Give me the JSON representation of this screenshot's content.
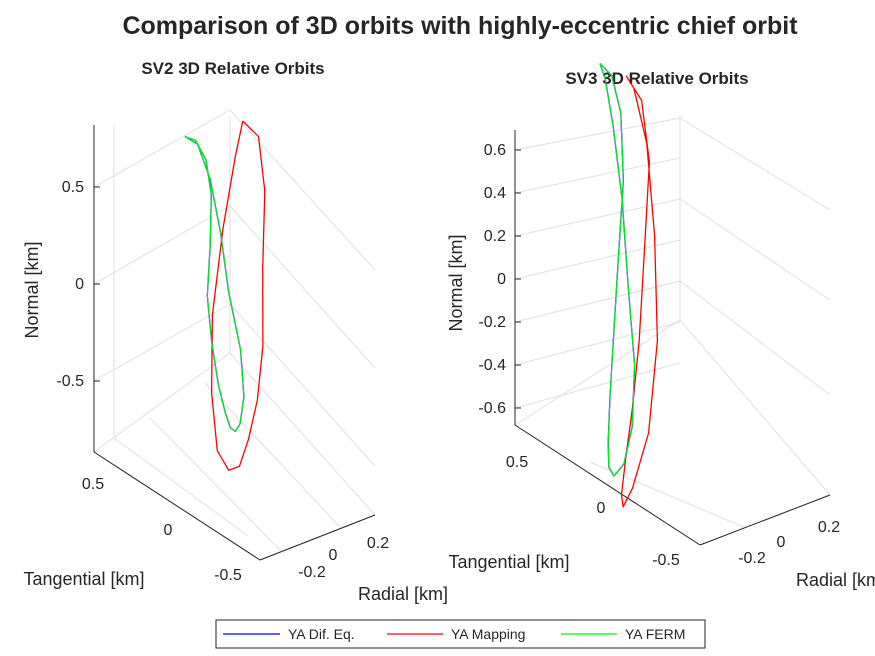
{
  "figure": {
    "title": "Comparison of 3D orbits with highly-eccentric chief orbit"
  },
  "chart_data": [
    {
      "type": "line",
      "projection": "3d",
      "title": "SV2 3D Relative Orbits",
      "xlabel": "Radial [km]",
      "ylabel": "Tangential [km]",
      "zlabel": "Normal [km]",
      "x_ticks": [
        "-0.2",
        "0",
        "0.2"
      ],
      "y_ticks": [
        "-0.5",
        "0",
        "0.5"
      ],
      "z_ticks": [
        "-0.5",
        "0",
        "0.5"
      ],
      "grid": true,
      "series": [
        {
          "name": "YA Dif. Eq.",
          "color": "#0000ff",
          "points": [
            [
              0.76,
              0.0
            ],
            [
              0.74,
              0.1
            ],
            [
              0.64,
              0.2
            ],
            [
              0.46,
              0.25
            ],
            [
              0.2,
              0.24
            ],
            [
              -0.06,
              0.19
            ],
            [
              -0.3,
              0.14
            ],
            [
              -0.52,
              0.12
            ],
            [
              -0.66,
              0.13
            ],
            [
              -0.74,
              0.15
            ],
            [
              -0.76,
              0.19
            ],
            [
              -0.72,
              0.25
            ],
            [
              -0.58,
              0.34
            ],
            [
              -0.34,
              0.4
            ],
            [
              -0.04,
              0.4
            ],
            [
              0.26,
              0.34
            ],
            [
              0.54,
              0.24
            ],
            [
              0.72,
              0.12
            ],
            [
              0.76,
              0.0
            ]
          ]
        },
        {
          "name": "YA Mapping",
          "color": "#ff0000",
          "points": [
            [
              0.84,
              0.55
            ],
            [
              0.76,
              0.7
            ],
            [
              0.48,
              0.76
            ],
            [
              0.08,
              0.74
            ],
            [
              -0.32,
              0.62
            ],
            [
              -0.6,
              0.46
            ],
            [
              -0.8,
              0.3
            ],
            [
              -0.94,
              0.16
            ],
            [
              -0.96,
              0.05
            ],
            [
              -0.86,
              -0.02
            ],
            [
              -0.56,
              0.04
            ],
            [
              -0.16,
              0.2
            ],
            [
              0.28,
              0.36
            ],
            [
              0.66,
              0.48
            ],
            [
              0.84,
              0.55
            ]
          ]
        },
        {
          "name": "YA FERM",
          "color": "#00ff00",
          "points": [
            [
              0.76,
              0.0
            ],
            [
              0.74,
              0.1
            ],
            [
              0.64,
              0.2
            ],
            [
              0.46,
              0.25
            ],
            [
              0.2,
              0.24
            ],
            [
              -0.06,
              0.19
            ],
            [
              -0.3,
              0.14
            ],
            [
              -0.52,
              0.12
            ],
            [
              -0.66,
              0.13
            ],
            [
              -0.74,
              0.15
            ],
            [
              -0.76,
              0.19
            ],
            [
              -0.72,
              0.25
            ],
            [
              -0.58,
              0.34
            ],
            [
              -0.34,
              0.4
            ],
            [
              -0.04,
              0.4
            ],
            [
              0.26,
              0.34
            ],
            [
              0.54,
              0.24
            ],
            [
              0.72,
              0.12
            ],
            [
              0.76,
              0.0
            ]
          ]
        }
      ]
    },
    {
      "type": "line",
      "projection": "3d",
      "title": "SV3 3D Relative Orbits",
      "xlabel": "Radial [km]",
      "ylabel": "Tangential [km]",
      "zlabel": "Normal [km]",
      "x_ticks": [
        "-0.2",
        "0",
        "0.2"
      ],
      "y_ticks": [
        "-0.5",
        "0",
        "0.5"
      ],
      "z_ticks": [
        "-0.6",
        "-0.4",
        "-0.2",
        "0",
        "0.2",
        "0.4",
        "0.6"
      ],
      "grid": true,
      "series": [
        {
          "name": "YA Dif. Eq.",
          "color": "#0000ff",
          "points": [
            [
              0.7,
              0.0
            ],
            [
              0.66,
              0.09
            ],
            [
              0.54,
              0.16
            ],
            [
              0.32,
              0.18
            ],
            [
              0.06,
              0.14
            ],
            [
              -0.18,
              0.05
            ],
            [
              -0.38,
              -0.04
            ],
            [
              -0.53,
              -0.1
            ],
            [
              -0.61,
              -0.12
            ],
            [
              -0.64,
              -0.09
            ],
            [
              -0.6,
              0.0
            ],
            [
              -0.48,
              0.1
            ],
            [
              -0.28,
              0.18
            ],
            [
              -0.02,
              0.21
            ],
            [
              0.26,
              0.17
            ],
            [
              0.5,
              0.1
            ],
            [
              0.65,
              0.04
            ],
            [
              0.7,
              0.0
            ]
          ]
        },
        {
          "name": "YA Mapping",
          "color": "#ff0000",
          "points": [
            [
              0.66,
              0.2
            ],
            [
              0.58,
              0.32
            ],
            [
              0.38,
              0.38
            ],
            [
              0.08,
              0.34
            ],
            [
              -0.2,
              0.24
            ],
            [
              -0.42,
              0.12
            ],
            [
              -0.58,
              0.02
            ],
            [
              -0.7,
              -0.05
            ],
            [
              -0.74,
              -0.05
            ],
            [
              -0.68,
              0.04
            ],
            [
              -0.5,
              0.22
            ],
            [
              -0.2,
              0.38
            ],
            [
              0.14,
              0.42
            ],
            [
              0.44,
              0.36
            ],
            [
              0.62,
              0.26
            ],
            [
              0.66,
              0.2
            ]
          ]
        },
        {
          "name": "YA FERM",
          "color": "#00ff00",
          "points": [
            [
              0.7,
              0.0
            ],
            [
              0.66,
              0.09
            ],
            [
              0.54,
              0.16
            ],
            [
              0.32,
              0.18
            ],
            [
              0.06,
              0.14
            ],
            [
              -0.18,
              0.05
            ],
            [
              -0.38,
              -0.04
            ],
            [
              -0.53,
              -0.1
            ],
            [
              -0.61,
              -0.12
            ],
            [
              -0.64,
              -0.09
            ],
            [
              -0.6,
              0.0
            ],
            [
              -0.48,
              0.1
            ],
            [
              -0.28,
              0.18
            ],
            [
              -0.02,
              0.21
            ],
            [
              0.26,
              0.17
            ],
            [
              0.5,
              0.1
            ],
            [
              0.65,
              0.04
            ],
            [
              0.7,
              0.0
            ]
          ]
        }
      ]
    }
  ],
  "legend": {
    "placement": "bottom-center",
    "items": [
      {
        "label": "YA Dif. Eq.",
        "color": "#0000ff"
      },
      {
        "label": "YA Mapping",
        "color": "#ff0000"
      },
      {
        "label": "YA FERM",
        "color": "#00ff00"
      }
    ]
  }
}
